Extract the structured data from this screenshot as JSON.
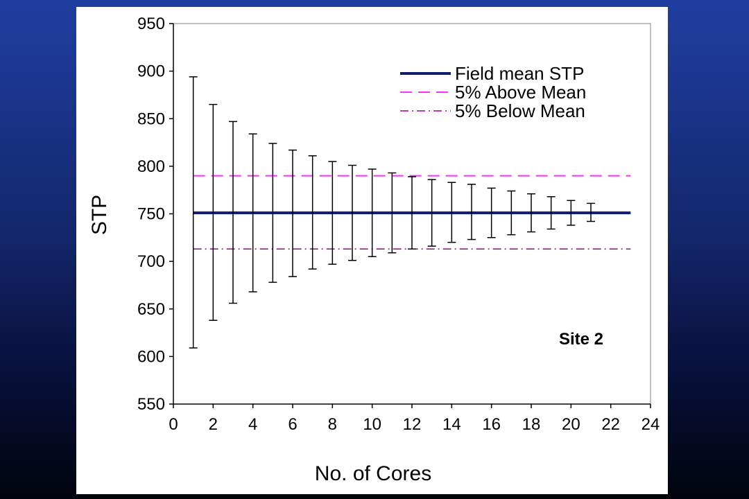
{
  "chart_data": {
    "type": "line",
    "xlabel": "No. of Cores",
    "ylabel": "STP",
    "xlim": [
      0,
      24
    ],
    "ylim": [
      550,
      950
    ],
    "xticks": [
      0,
      2,
      4,
      6,
      8,
      10,
      12,
      14,
      16,
      18,
      20,
      22,
      24
    ],
    "yticks": [
      550,
      600,
      650,
      700,
      750,
      800,
      850,
      900,
      950
    ],
    "annotation": "Site 2",
    "grid": false,
    "legend_position": "top-right",
    "lines": [
      {
        "name": "Field mean STP",
        "style": "solid",
        "color": "#0f1d6e",
        "y": 751,
        "x_range": [
          1,
          23
        ]
      },
      {
        "name": "5% Above Mean",
        "style": "dashed",
        "color": "#ff2bff",
        "y": 790,
        "x_range": [
          1,
          23
        ]
      },
      {
        "name": "5% Below Mean",
        "style": "dash-dot",
        "color": "#990099",
        "y": 713,
        "x_range": [
          1,
          23
        ]
      }
    ],
    "error_bars": {
      "x": [
        1,
        2,
        3,
        4,
        5,
        6,
        7,
        8,
        9,
        10,
        11,
        12,
        13,
        14,
        15,
        16,
        17,
        18,
        19,
        20,
        21
      ],
      "upper": [
        894,
        865,
        847,
        834,
        824,
        817,
        811,
        805,
        801,
        797,
        793,
        789,
        786,
        783,
        781,
        777,
        774,
        771,
        768,
        764,
        761
      ],
      "lower": [
        609,
        638,
        656,
        668,
        678,
        684,
        692,
        697,
        701,
        705,
        709,
        713,
        716,
        720,
        723,
        725,
        728,
        731,
        734,
        738,
        742
      ]
    }
  }
}
